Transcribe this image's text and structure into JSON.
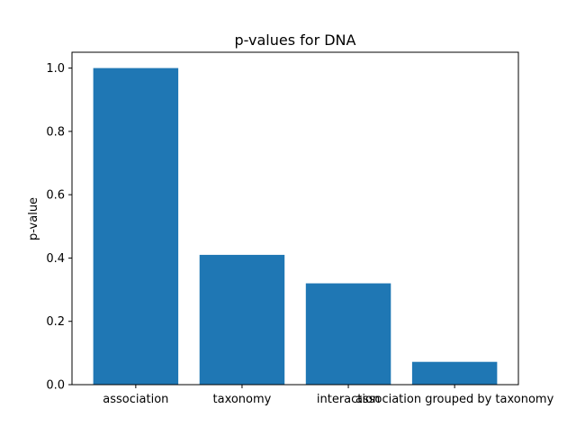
{
  "chart_data": {
    "type": "bar",
    "title": "p-values for DNA",
    "xlabel": "",
    "ylabel": "p-value",
    "categories": [
      "association",
      "taxonomy",
      "interaction",
      "association grouped by taxonomy"
    ],
    "values": [
      1.0,
      0.41,
      0.32,
      0.072
    ],
    "ylim": [
      0,
      1.05
    ],
    "yticks": [
      "0.0",
      "0.2",
      "0.4",
      "0.6",
      "0.8",
      "1.0"
    ],
    "grid": false,
    "legend": "none",
    "bar_color": "#1f77b4"
  }
}
